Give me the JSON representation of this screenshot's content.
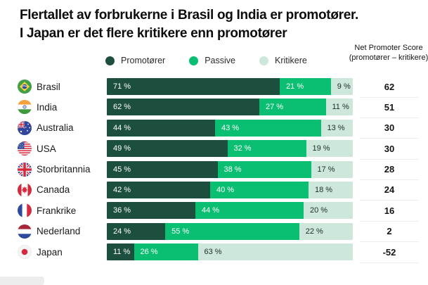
{
  "title": {
    "line1": "Flertallet av forbrukerne i Brasil og India er promotører.",
    "line2": "I Japan er det flere kritikere enn promotører"
  },
  "legend": [
    {
      "label": "Promotører",
      "color": "#1d4f3e"
    },
    {
      "label": "Passive",
      "color": "#0abf72"
    },
    {
      "label": "Kritikere",
      "color": "#cde7da"
    }
  ],
  "nps_header": "Net Promoter Score (promotører – kritikere)",
  "colors": {
    "promotorer": "#1d4f3e",
    "passive": "#0abf72",
    "kritikere": "#cde7da",
    "label_on_dark": "#ffffff",
    "label_on_light": "#1b2c28",
    "separator": "#ececec"
  },
  "chart_data": {
    "type": "bar",
    "stacked": true,
    "orientation": "horizontal",
    "unit": "%",
    "series_names": [
      "Promotører",
      "Passive",
      "Kritikere"
    ],
    "value_suffix": " %",
    "rows": [
      {
        "country": "Brasil",
        "flag": "br",
        "promotorer": 71,
        "passive": 21,
        "kritikere": 9,
        "nps": 62
      },
      {
        "country": "India",
        "flag": "in",
        "promotorer": 62,
        "passive": 27,
        "kritikere": 11,
        "nps": 51
      },
      {
        "country": "Australia",
        "flag": "au",
        "promotorer": 44,
        "passive": 43,
        "kritikere": 13,
        "nps": 30
      },
      {
        "country": "USA",
        "flag": "us",
        "promotorer": 49,
        "passive": 32,
        "kritikere": 19,
        "nps": 30
      },
      {
        "country": "Storbritannia",
        "flag": "gb",
        "promotorer": 45,
        "passive": 38,
        "kritikere": 17,
        "nps": 28
      },
      {
        "country": "Canada",
        "flag": "ca",
        "promotorer": 42,
        "passive": 40,
        "kritikere": 18,
        "nps": 24
      },
      {
        "country": "Frankrike",
        "flag": "fr",
        "promotorer": 36,
        "passive": 44,
        "kritikere": 20,
        "nps": 16
      },
      {
        "country": "Nederland",
        "flag": "nl",
        "promotorer": 24,
        "passive": 55,
        "kritikere": 22,
        "nps": 2
      },
      {
        "country": "Japan",
        "flag": "jp",
        "promotorer": 11,
        "passive": 26,
        "kritikere": 63,
        "nps": -52
      }
    ]
  }
}
